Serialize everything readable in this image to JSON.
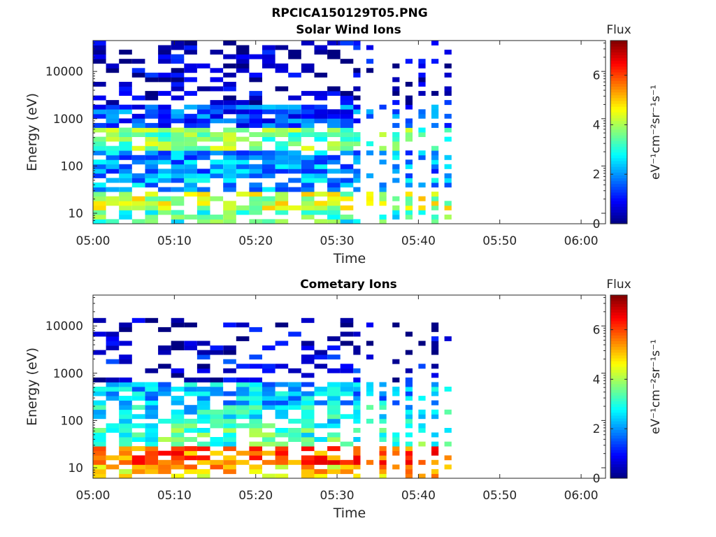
{
  "figure": {
    "title": "RPCICA150129T05.PNG"
  },
  "colors": {
    "axis": "#262626",
    "background": "#ffffff"
  },
  "colormap": "jet",
  "chart_data": [
    {
      "type": "heatmap",
      "title": "Solar Wind Ions",
      "xlabel": "Time",
      "ylabel": "Energy (eV)",
      "x_ticks": [
        "05:00",
        "05:10",
        "05:20",
        "05:30",
        "05:40",
        "05:50",
        "06:00"
      ],
      "x_range_minutes": [
        0,
        63
      ],
      "y_scale": "log",
      "y_range_eV": [
        6,
        45000
      ],
      "y_ticks": [
        {
          "value": 10,
          "label": "10"
        },
        {
          "value": 100,
          "label": "100"
        },
        {
          "value": 1000,
          "label": "1000"
        },
        {
          "value": 10000,
          "label": "10000"
        }
      ],
      "data_end_minute": 46,
      "colorbar": {
        "title": "Flux",
        "unit_label": "eV⁻¹cm⁻²sr⁻¹s⁻¹",
        "range": [
          0,
          7.4
        ],
        "ticks": [
          "0",
          "2",
          "4",
          "6"
        ]
      },
      "energy_bands": [
        {
          "e_min": 6,
          "e_max": 12,
          "value": 3.2
        },
        {
          "e_min": 12,
          "e_max": 30,
          "value": 4.2
        },
        {
          "e_min": 30,
          "e_max": 60,
          "value": 2.2
        },
        {
          "e_min": 60,
          "e_max": 220,
          "value": 2.0
        },
        {
          "e_min": 220,
          "e_max": 600,
          "value": 3.6
        },
        {
          "e_min": 600,
          "e_max": 2000,
          "value": 1.5
        },
        {
          "e_min": 2000,
          "e_max": 45000,
          "value": 0.5
        }
      ]
    },
    {
      "type": "heatmap",
      "title": "Cometary Ions",
      "xlabel": "Time",
      "ylabel": "Energy (eV)",
      "x_ticks": [
        "05:00",
        "05:10",
        "05:20",
        "05:30",
        "05:40",
        "05:50",
        "06:00"
      ],
      "x_range_minutes": [
        0,
        63
      ],
      "y_scale": "log",
      "y_range_eV": [
        6,
        45000
      ],
      "y_ticks": [
        {
          "value": 10,
          "label": "10"
        },
        {
          "value": 100,
          "label": "100"
        },
        {
          "value": 1000,
          "label": "1000"
        },
        {
          "value": 10000,
          "label": "10000"
        }
      ],
      "data_end_minute": 46,
      "colorbar": {
        "title": "Flux",
        "unit_label": "eV⁻¹cm⁻²sr⁻¹s⁻¹",
        "range": [
          0,
          7.4
        ],
        "ticks": [
          "0",
          "2",
          "4",
          "6"
        ]
      },
      "energy_bands": [
        {
          "e_min": 6,
          "e_max": 13,
          "value": 5.0
        },
        {
          "e_min": 13,
          "e_max": 30,
          "value": 5.8
        },
        {
          "e_min": 30,
          "e_max": 80,
          "value": 3.2
        },
        {
          "e_min": 80,
          "e_max": 220,
          "value": 2.6
        },
        {
          "e_min": 220,
          "e_max": 600,
          "value": 2.2
        },
        {
          "e_min": 600,
          "e_max": 2500,
          "value": 0.8
        },
        {
          "e_min": 2500,
          "e_max": 16000,
          "value": 0.4
        }
      ]
    }
  ]
}
